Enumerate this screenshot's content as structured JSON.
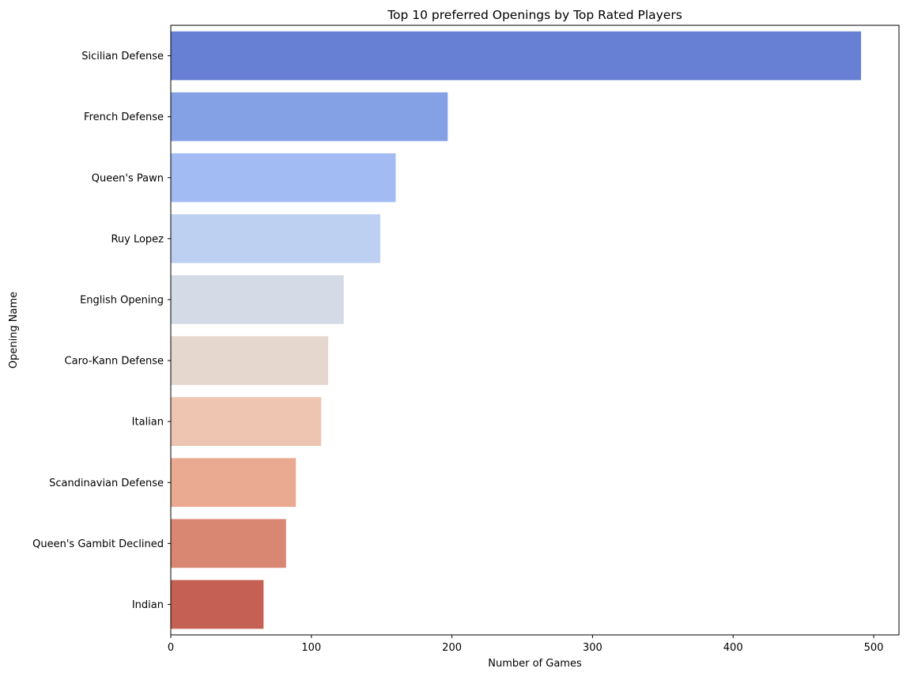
{
  "chart_data": {
    "type": "bar",
    "orientation": "horizontal",
    "title": "Top 10 preferred Openings by Top Rated Players",
    "xlabel": "Number of Games",
    "ylabel": "Opening Name",
    "xlim": [
      0,
      518
    ],
    "xticks": [
      0,
      100,
      200,
      300,
      400,
      500
    ],
    "grid": false,
    "categories": [
      "Sicilian Defense",
      "French Defense",
      "Queen's Pawn",
      "Ruy Lopez",
      "English Opening",
      "Caro-Kann Defense",
      "Italian",
      "Scandinavian Defense",
      "Queen's Gambit Declined",
      "Indian"
    ],
    "values": [
      491,
      197,
      160,
      149,
      123,
      112,
      107,
      89,
      82,
      66
    ],
    "colors": [
      "#6880d3",
      "#84a1e6",
      "#a2bcf3",
      "#bdd0f2",
      "#d4dae6",
      "#e5d7ce",
      "#edc5b1",
      "#e9aa91",
      "#d98672",
      "#c46054"
    ]
  }
}
